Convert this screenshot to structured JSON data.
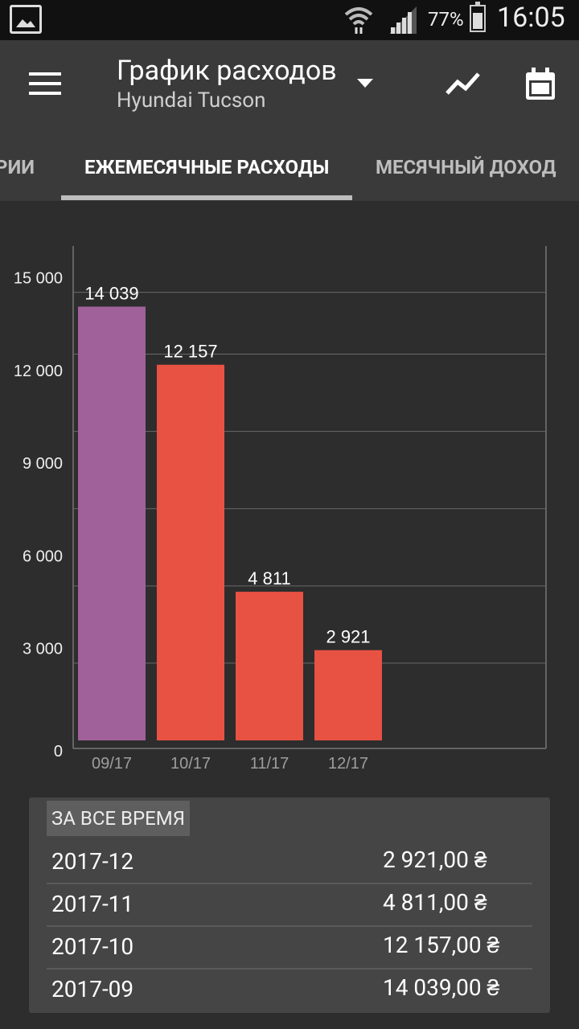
{
  "status": {
    "battery": "77%",
    "time": "16:05"
  },
  "appbar": {
    "title": "График расходов",
    "subtitle": "Hyundai Tucson",
    "icons": [
      "menu-icon",
      "dropdown-arrow-icon",
      "trend-chart-icon",
      "calendar-icon"
    ]
  },
  "tabs": [
    {
      "label": "РИИ"
    },
    {
      "label": "ЕЖЕМЕСЯЧНЫЕ РАСХОДЫ"
    },
    {
      "label": "МЕСЯЧНЫЙ ДОХОД"
    }
  ],
  "chart_data": {
    "type": "bar",
    "categories": [
      "09/17",
      "10/17",
      "11/17",
      "12/17"
    ],
    "values": [
      14039,
      12157,
      4811,
      2921
    ],
    "data_labels": [
      "14 039",
      "12 157",
      "4 811",
      "2 921"
    ],
    "ylim": [
      0,
      16000
    ],
    "y_ticks": [
      0,
      3000,
      6000,
      9000,
      12000,
      15000
    ],
    "y_tick_labels": [
      "0",
      "3 000",
      "6 000",
      "9 000",
      "12 000",
      "15 000"
    ],
    "bar_colors": [
      "#a0619a",
      "#e85243",
      "#e85243",
      "#e85243"
    ],
    "grid": true
  },
  "summary": {
    "header": "ЗА ВСЕ ВРЕМЯ",
    "rows": [
      {
        "period": "2017-12",
        "amount": "2 921,00 ₴"
      },
      {
        "period": "2017-11",
        "amount": "4 811,00 ₴"
      },
      {
        "period": "2017-10",
        "amount": "12 157,00 ₴"
      },
      {
        "period": "2017-09",
        "amount": "14 039,00 ₴"
      }
    ]
  }
}
